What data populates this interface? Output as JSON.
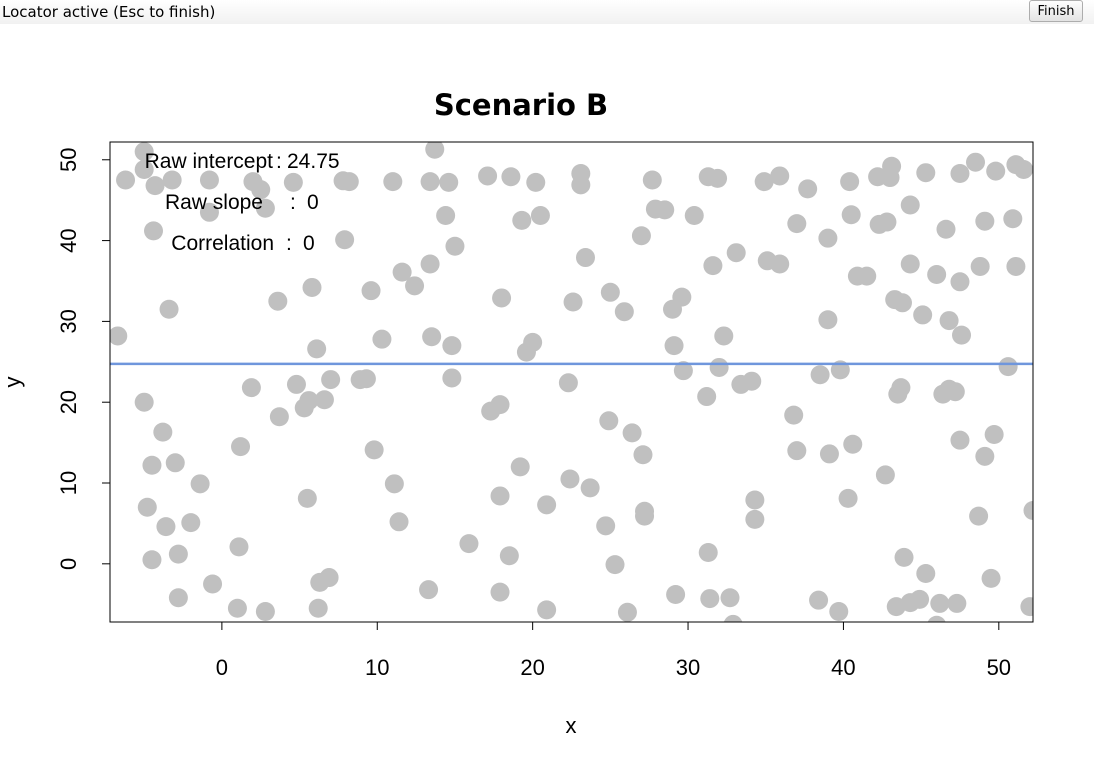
{
  "window": {
    "status_text": "Locator active (Esc to finish)",
    "finish_label": "Finish"
  },
  "colors": {
    "points": "#c0c0c0",
    "fit_line": "#6f96dc",
    "frame": "#000000"
  },
  "chart_data": {
    "type": "scatter",
    "title": "Scenario B",
    "xlabel": "x",
    "ylabel": "y",
    "xlim": [
      -7.2,
      52.2
    ],
    "ylim": [
      -7.2,
      52.2
    ],
    "xticks": [
      0,
      10,
      20,
      30,
      40,
      50
    ],
    "yticks": [
      0,
      10,
      20,
      30,
      40,
      50
    ],
    "grid": false,
    "annotations": [
      {
        "label": "Raw intercept",
        "value": "24.75"
      },
      {
        "label": "Raw slope",
        "value": "0"
      },
      {
        "label": "Correlation",
        "value": "0"
      }
    ],
    "fit_line": {
      "intercept": 24.75,
      "slope": 0
    },
    "points": [
      [
        -6.7,
        28.2
      ],
      [
        -6.2,
        47.5
      ],
      [
        -5,
        51
      ],
      [
        -5,
        48.8
      ],
      [
        -5,
        20
      ],
      [
        -4.8,
        7
      ],
      [
        -4.5,
        12.2
      ],
      [
        -4.5,
        0.5
      ],
      [
        -4.4,
        41.2
      ],
      [
        -4.3,
        46.8
      ],
      [
        -3.8,
        16.3
      ],
      [
        -3.6,
        4.6
      ],
      [
        -3.4,
        31.5
      ],
      [
        -3.2,
        47.5
      ],
      [
        -3,
        12.5
      ],
      [
        -2.8,
        1.2
      ],
      [
        -2.8,
        -4.2
      ],
      [
        -2,
        5.1
      ],
      [
        -1.4,
        9.9
      ],
      [
        -0.8,
        47.5
      ],
      [
        -0.8,
        43.5
      ],
      [
        -0.6,
        -2.5
      ],
      [
        1,
        -5.5
      ],
      [
        1.1,
        2.1
      ],
      [
        1.2,
        14.5
      ],
      [
        1.9,
        21.8
      ],
      [
        2,
        47.3
      ],
      [
        2.5,
        46.3
      ],
      [
        2.8,
        44
      ],
      [
        2.8,
        -5.9
      ],
      [
        3.6,
        32.5
      ],
      [
        3.7,
        18.2
      ],
      [
        4.6,
        47.2
      ],
      [
        4.8,
        22.2
      ],
      [
        5.3,
        19.3
      ],
      [
        5.5,
        8.1
      ],
      [
        5.6,
        20.2
      ],
      [
        5.8,
        34.2
      ],
      [
        6.1,
        26.6
      ],
      [
        6.2,
        -5.5
      ],
      [
        6.3,
        -2.3
      ],
      [
        6.6,
        20.3
      ],
      [
        6.9,
        -1.7
      ],
      [
        7,
        22.8
      ],
      [
        7.8,
        47.4
      ],
      [
        7.9,
        40.1
      ],
      [
        8.2,
        47.3
      ],
      [
        8.9,
        22.8
      ],
      [
        9.3,
        22.9
      ],
      [
        9.6,
        33.8
      ],
      [
        9.8,
        14.1
      ],
      [
        10.3,
        27.8
      ],
      [
        11,
        47.3
      ],
      [
        11.1,
        9.9
      ],
      [
        11.4,
        5.2
      ],
      [
        11.6,
        36.1
      ],
      [
        12.4,
        34.4
      ],
      [
        13.3,
        -3.2
      ],
      [
        13.4,
        37.1
      ],
      [
        13.4,
        47.3
      ],
      [
        13.5,
        28.1
      ],
      [
        13.7,
        51.3
      ],
      [
        14.4,
        43.1
      ],
      [
        14.6,
        47.2
      ],
      [
        14.8,
        27
      ],
      [
        14.8,
        23
      ],
      [
        15,
        39.3
      ],
      [
        15.9,
        2.5
      ],
      [
        17.1,
        48
      ],
      [
        17.3,
        18.9
      ],
      [
        17.9,
        19.7
      ],
      [
        17.9,
        8.4
      ],
      [
        17.9,
        -3.5
      ],
      [
        18,
        32.9
      ],
      [
        18.5,
        1
      ],
      [
        18.6,
        47.9
      ],
      [
        19.2,
        12
      ],
      [
        19.3,
        42.5
      ],
      [
        19.6,
        26.2
      ],
      [
        20,
        27.4
      ],
      [
        20.2,
        47.2
      ],
      [
        20.5,
        43.1
      ],
      [
        20.9,
        7.3
      ],
      [
        20.9,
        -5.7
      ],
      [
        22.3,
        22.4
      ],
      [
        22.4,
        10.5
      ],
      [
        22.6,
        32.4
      ],
      [
        23.1,
        48.3
      ],
      [
        23.1,
        46.9
      ],
      [
        23.4,
        37.9
      ],
      [
        23.7,
        9.4
      ],
      [
        24.7,
        4.7
      ],
      [
        24.9,
        17.7
      ],
      [
        25,
        33.6
      ],
      [
        25.3,
        -0.1
      ],
      [
        25.9,
        31.2
      ],
      [
        26.1,
        -6
      ],
      [
        26.4,
        16.2
      ],
      [
        27,
        40.6
      ],
      [
        27.1,
        13.5
      ],
      [
        27.2,
        6.5
      ],
      [
        27.2,
        5.9
      ],
      [
        27.7,
        47.5
      ],
      [
        27.9,
        43.9
      ],
      [
        28.5,
        43.8
      ],
      [
        29,
        31.5
      ],
      [
        29.1,
        27
      ],
      [
        29.2,
        -3.8
      ],
      [
        29.6,
        33
      ],
      [
        29.7,
        23.9
      ],
      [
        30.4,
        43.1
      ],
      [
        31.2,
        20.7
      ],
      [
        31.3,
        1.4
      ],
      [
        31.3,
        47.9
      ],
      [
        31.4,
        -4.3
      ],
      [
        31.6,
        36.9
      ],
      [
        31.9,
        47.7
      ],
      [
        32,
        24.3
      ],
      [
        32.3,
        28.2
      ],
      [
        32.7,
        -4.2
      ],
      [
        32.9,
        -7.5
      ],
      [
        33.1,
        38.5
      ],
      [
        33.4,
        22.2
      ],
      [
        34.1,
        22.6
      ],
      [
        34.3,
        7.9
      ],
      [
        34.3,
        5.5
      ],
      [
        34.9,
        47.3
      ],
      [
        35.1,
        37.5
      ],
      [
        35.9,
        48
      ],
      [
        35.9,
        37.1
      ],
      [
        36.8,
        18.4
      ],
      [
        37,
        14
      ],
      [
        37,
        42.1
      ],
      [
        37.7,
        46.4
      ],
      [
        38.4,
        -4.5
      ],
      [
        38.5,
        23.4
      ],
      [
        39,
        30.2
      ],
      [
        39,
        40.3
      ],
      [
        39.1,
        13.6
      ],
      [
        39.7,
        -5.9
      ],
      [
        39.8,
        24
      ],
      [
        40.3,
        8.1
      ],
      [
        40.4,
        47.3
      ],
      [
        40.5,
        43.2
      ],
      [
        40.6,
        14.8
      ],
      [
        40.9,
        35.6
      ],
      [
        41.5,
        35.6
      ],
      [
        42.2,
        47.9
      ],
      [
        42.3,
        42
      ],
      [
        42.7,
        11
      ],
      [
        42.8,
        42.3
      ],
      [
        43,
        47.8
      ],
      [
        43.1,
        49.2
      ],
      [
        43.3,
        32.7
      ],
      [
        43.4,
        -5.3
      ],
      [
        43.5,
        21
      ],
      [
        43.7,
        21.8
      ],
      [
        43.8,
        32.3
      ],
      [
        43.9,
        0.8
      ],
      [
        44.3,
        44.4
      ],
      [
        44.3,
        37.1
      ],
      [
        44.3,
        -4.8
      ],
      [
        44.9,
        -4.4
      ],
      [
        45.1,
        30.8
      ],
      [
        45.3,
        48.4
      ],
      [
        45.3,
        -1.2
      ],
      [
        46,
        35.8
      ],
      [
        46,
        -7.6
      ],
      [
        46.2,
        -4.9
      ],
      [
        46.4,
        21
      ],
      [
        46.6,
        41.4
      ],
      [
        46.8,
        30.1
      ],
      [
        46.8,
        21.6
      ],
      [
        47.2,
        21.3
      ],
      [
        47.3,
        -4.9
      ],
      [
        47.5,
        15.3
      ],
      [
        47.5,
        48.3
      ],
      [
        47.5,
        34.9
      ],
      [
        47.6,
        28.3
      ],
      [
        48.5,
        49.7
      ],
      [
        48.7,
        5.9
      ],
      [
        48.8,
        36.8
      ],
      [
        49.1,
        13.3
      ],
      [
        49.1,
        42.4
      ],
      [
        49.5,
        -1.8
      ],
      [
        49.7,
        16
      ],
      [
        49.8,
        48.6
      ],
      [
        50.6,
        24.4
      ],
      [
        50.9,
        42.7
      ],
      [
        51.1,
        49.4
      ],
      [
        51.1,
        36.8
      ],
      [
        51.6,
        48.8
      ],
      [
        52,
        -5.3
      ],
      [
        52.2,
        6.6
      ]
    ]
  }
}
